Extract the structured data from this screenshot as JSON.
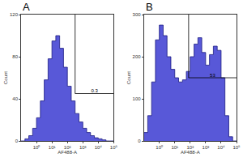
{
  "chart_data": [
    {
      "type": "histogram",
      "title": "A",
      "x_label": "AF488-A",
      "y_label": "Count",
      "log": "x",
      "color": "#5858d8",
      "bins": [
        0.1,
        0.178,
        0.316,
        0.562,
        1,
        1.78,
        3.16,
        5.62,
        10,
        17.8,
        31.6,
        56.2,
        100,
        178,
        316,
        562,
        1000,
        1778,
        3162,
        5623,
        10000,
        17783,
        31623,
        56234,
        100000
      ],
      "counts": [
        0,
        2,
        5,
        12,
        22,
        38,
        58,
        78,
        95,
        100,
        88,
        70,
        52,
        38,
        26,
        18,
        12,
        8,
        5,
        3,
        2,
        1,
        0,
        0
      ],
      "xlim": [
        0.1,
        100000
      ],
      "xticks": [
        {
          "value": 1,
          "label": "10⁰"
        },
        {
          "value": 10,
          "label": "10¹"
        },
        {
          "value": 100,
          "label": "10²"
        },
        {
          "value": 1000,
          "label": "10³"
        },
        {
          "value": 10000,
          "label": "10⁴"
        },
        {
          "value": 100000,
          "label": "10⁵"
        }
      ],
      "ylim": [
        0,
        120
      ],
      "yticks": [
        0,
        40,
        80,
        120
      ],
      "gate": {
        "x": 316,
        "y": 45,
        "label": "0.3"
      }
    },
    {
      "type": "histogram",
      "title": "B",
      "x_label": "AF488-A",
      "y_label": "Count",
      "log": "x",
      "color": "#5858d8",
      "bins": [
        0.1,
        0.178,
        0.316,
        0.562,
        1,
        1.78,
        3.16,
        5.62,
        10,
        17.8,
        31.6,
        56.2,
        100,
        178,
        316,
        562,
        1000,
        1778,
        3162,
        5623,
        10000,
        17783,
        31623,
        56234,
        100000
      ],
      "counts": [
        20,
        60,
        140,
        240,
        275,
        250,
        200,
        170,
        150,
        140,
        145,
        165,
        200,
        230,
        245,
        210,
        180,
        205,
        225,
        215,
        150,
        60,
        10,
        0
      ],
      "xlim": [
        0.1,
        100000
      ],
      "xticks": [
        {
          "value": 1,
          "label": "10⁰"
        },
        {
          "value": 10,
          "label": "10¹"
        },
        {
          "value": 100,
          "label": "10²"
        },
        {
          "value": 1000,
          "label": "10³"
        },
        {
          "value": 10000,
          "label": "10⁴"
        },
        {
          "value": 100000,
          "label": "10⁵"
        }
      ],
      "ylim": [
        0,
        300
      ],
      "yticks": [
        0,
        100,
        200,
        300
      ],
      "gate": {
        "x": 79,
        "y": 150,
        "label": "53"
      }
    }
  ]
}
